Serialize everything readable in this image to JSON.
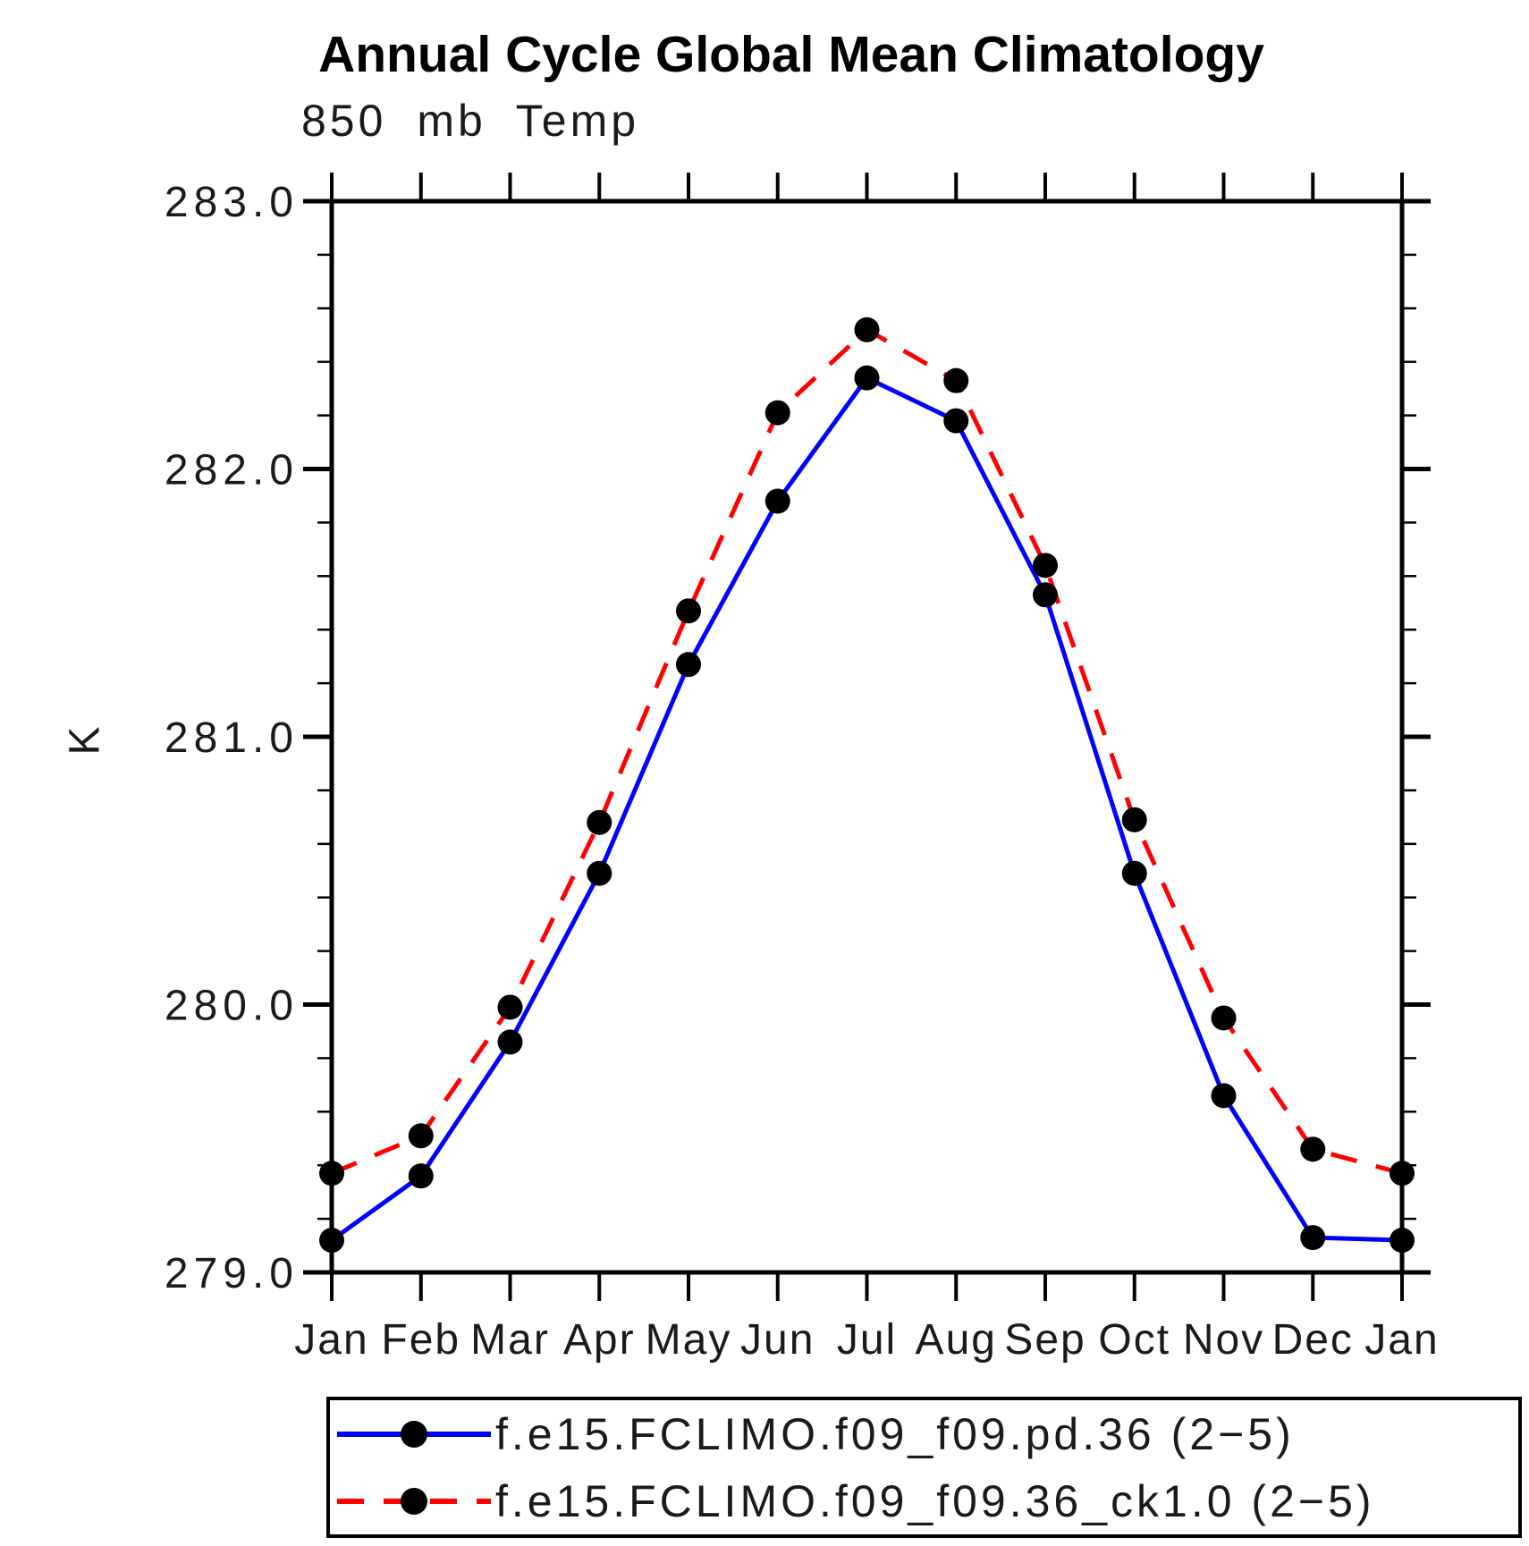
{
  "chart_data": {
    "type": "line",
    "title": "Annual Cycle Global Mean Climatology",
    "subtitle": "850 mb Temp",
    "ylabel": "K",
    "xlabel": "",
    "categories": [
      "Jan",
      "Feb",
      "Mar",
      "Apr",
      "May",
      "Jun",
      "Jul",
      "Aug",
      "Sep",
      "Oct",
      "Nov",
      "Dec",
      "Jan"
    ],
    "ylim": [
      279.0,
      283.0
    ],
    "yticks": [
      279.0,
      280.0,
      281.0,
      282.0,
      283.0
    ],
    "ytick_labels": [
      "279.0",
      "280.0",
      "281.0",
      "282.0",
      "283.0"
    ],
    "y_minor_step": 0.2,
    "grid": "off",
    "legend_position": "bottom",
    "series": [
      {
        "name": "f.e15.FCLIMO.f09_f09.pd.36 (2−5)",
        "color": "#0000ff",
        "line_style": "solid",
        "marker": "filled-circle",
        "marker_color": "#000000",
        "values": [
          279.12,
          279.36,
          279.86,
          280.49,
          281.27,
          281.88,
          282.34,
          282.18,
          281.53,
          280.49,
          279.66,
          279.13,
          279.12
        ]
      },
      {
        "name": "f.e15.FCLIMO.f09_f09.36_ck1.0 (2−5)",
        "color": "#ff0000",
        "line_style": "dashed",
        "marker": "filled-circle",
        "marker_color": "#000000",
        "values": [
          279.37,
          279.51,
          279.99,
          280.68,
          281.47,
          282.21,
          282.52,
          282.33,
          281.64,
          280.69,
          279.95,
          279.46,
          279.37
        ]
      }
    ]
  },
  "colors": {
    "axis": "#000000",
    "background": "#ffffff"
  }
}
